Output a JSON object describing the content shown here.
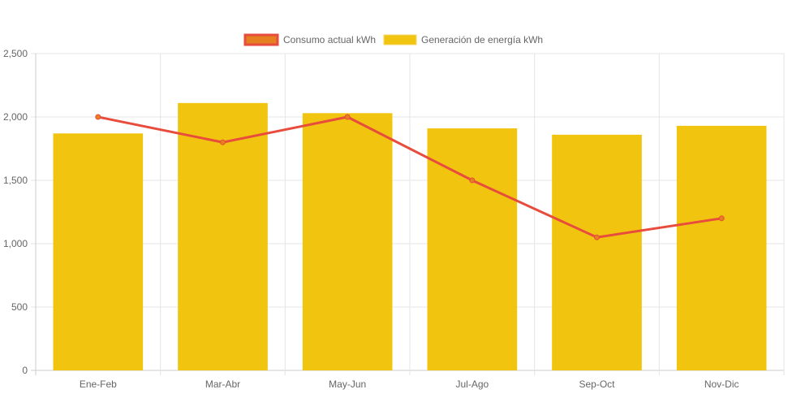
{
  "chart_data": {
    "type": "bar",
    "categories": [
      "Ene-Feb",
      "Mar-Abr",
      "May-Jun",
      "Jul-Ago",
      "Sep-Oct",
      "Nov-Dic"
    ],
    "series": [
      {
        "name": "Consumo actual kWh",
        "type": "line",
        "values": [
          2000,
          1800,
          2000,
          1500,
          1050,
          1200
        ],
        "color": "#e74c3c",
        "fill": "#e67e22"
      },
      {
        "name": "Generación de energía kWh",
        "type": "bar",
        "values": [
          1870,
          2110,
          2030,
          1910,
          1860,
          1930
        ],
        "color": "#f1c40f"
      }
    ],
    "ylim": [
      0,
      2500
    ],
    "yticks": [
      "0",
      "500",
      "1,000",
      "1,500",
      "2,000",
      "2,500"
    ],
    "grid": true,
    "legend": "top"
  }
}
